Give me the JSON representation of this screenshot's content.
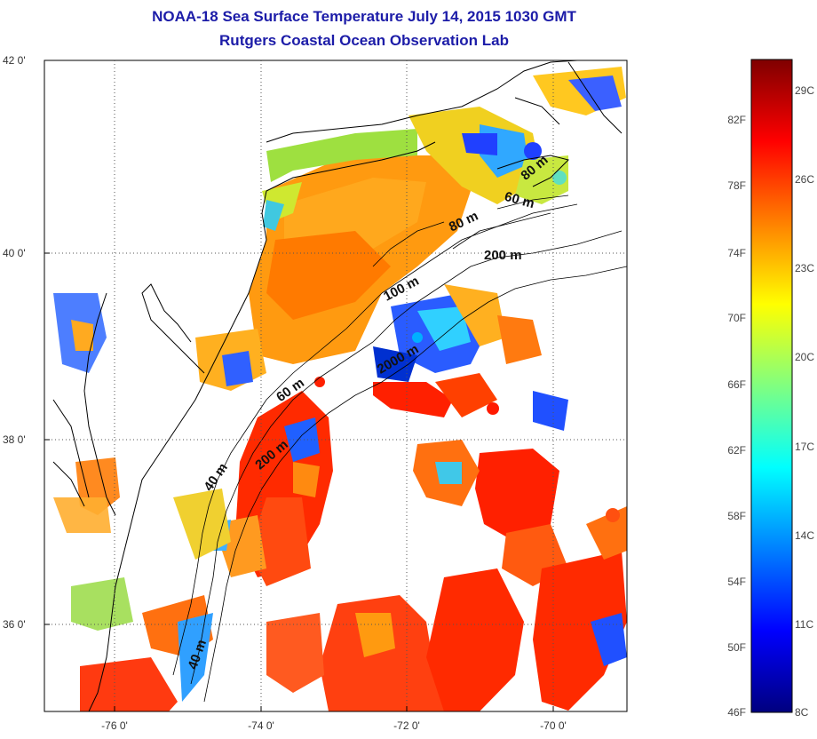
{
  "title": "NOAA-18 Sea Surface Temperature July 14, 2015 1030 GMT",
  "subtitle": "Rutgers Coastal Ocean Observation Lab",
  "map": {
    "lat_labels": [
      "42 0'",
      "40 0'",
      "38 0'",
      "36 0'"
    ],
    "lon_labels": [
      "-76 0'",
      "-74 0'",
      "-72 0'",
      "-70 0'"
    ],
    "isobath_labels": [
      "80 m",
      "60 m",
      "80 m",
      "200 m",
      "100 m",
      "2000 m",
      "60 m",
      "200 m",
      "40 m",
      "40 m"
    ]
  },
  "colorbar": {
    "fahrenheit_labels": [
      "82F",
      "78F",
      "74F",
      "70F",
      "66F",
      "62F",
      "58F",
      "54F",
      "50F",
      "46F"
    ],
    "celsius_labels": [
      "29C",
      "26C",
      "23C",
      "20C",
      "17C",
      "14C",
      "11C",
      "8C"
    ],
    "colors": [
      "#00007f",
      "#0000ff",
      "#0080ff",
      "#00ffff",
      "#80ff80",
      "#ffff00",
      "#ff8000",
      "#ff0000",
      "#7f0000"
    ]
  }
}
